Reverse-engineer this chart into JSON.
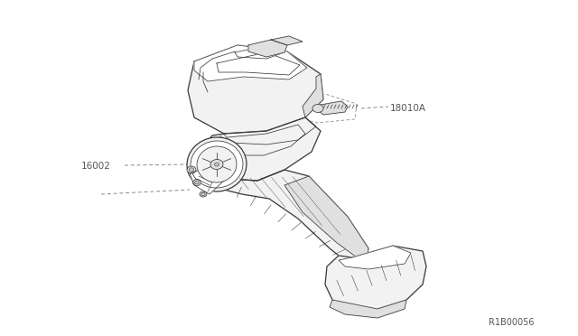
{
  "background_color": "#ffffff",
  "fig_width": 6.4,
  "fig_height": 3.72,
  "dpi": 100,
  "part_label_1": "16002",
  "part_label_2": "18010A",
  "ref_label": "R1B00056",
  "line_color": "#3a3a3a",
  "dash_color": "#888888",
  "text_color": "#555555",
  "label_fontsize": 7.5,
  "ref_fontsize": 7.0,
  "lw_main": 0.9,
  "lw_detail": 0.55,
  "fill_white": "#ffffff",
  "fill_light": "#f2f2f2",
  "fill_mid": "#e0e0e0",
  "fill_dark": "#c8c8c8"
}
